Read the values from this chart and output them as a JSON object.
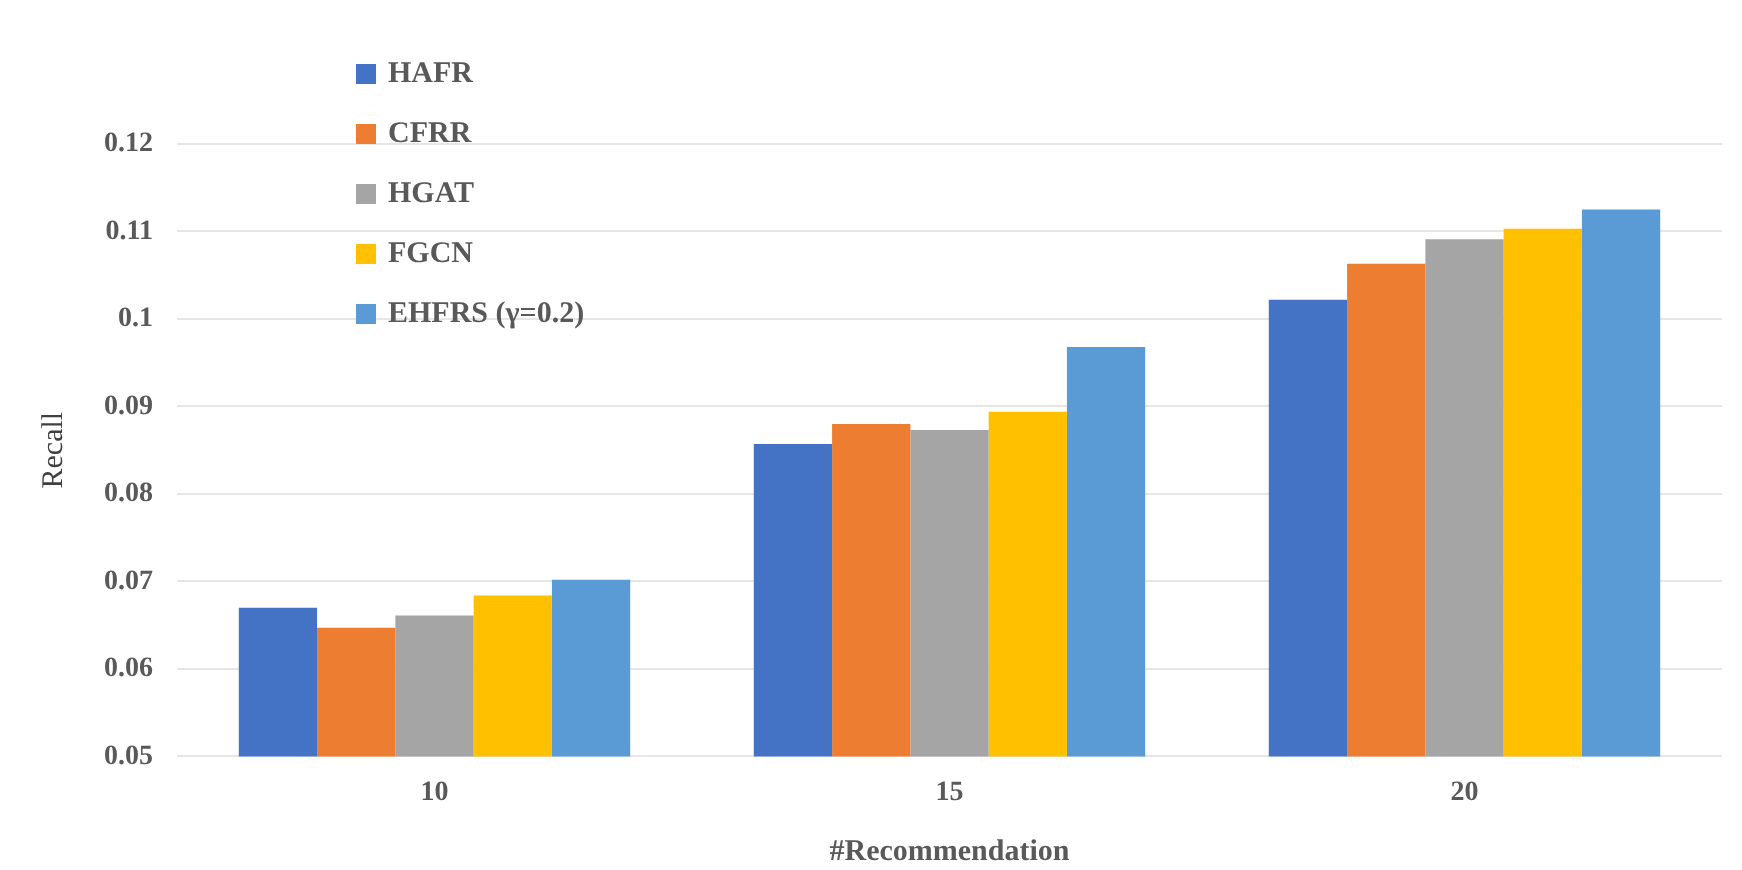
{
  "chart_data": {
    "type": "bar",
    "xlabel": "#Recommendation",
    "ylabel": "Recall",
    "categories": [
      "10",
      "15",
      "20"
    ],
    "series": [
      {
        "name": "HAFR",
        "color": "#4472c4",
        "values": [
          0.067,
          0.0857,
          0.1022
        ]
      },
      {
        "name": "CFRR",
        "color": "#ed7d31",
        "values": [
          0.0647,
          0.088,
          0.1063
        ]
      },
      {
        "name": "HGAT",
        "color": "#a5a5a5",
        "values": [
          0.0661,
          0.0873,
          0.1091
        ]
      },
      {
        "name": "FGCN",
        "color": "#ffc000",
        "values": [
          0.0684,
          0.0894,
          0.1103
        ]
      },
      {
        "name": "EHFRS (γ=0.2)",
        "color": "#5b9bd5",
        "values": [
          0.0702,
          0.0968,
          0.1125
        ]
      }
    ],
    "ylim": [
      0.05,
      0.12
    ],
    "yticks": [
      0.05,
      0.06,
      0.07,
      0.08,
      0.09,
      0.1,
      0.11,
      0.12
    ],
    "grid": "y",
    "legend": "top left"
  }
}
